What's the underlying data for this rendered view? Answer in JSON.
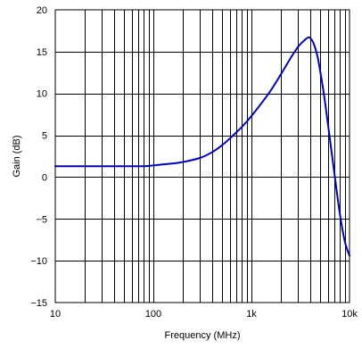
{
  "chart_data": {
    "type": "line",
    "title": "",
    "xlabel": "Frequency (MHz)",
    "ylabel": "Gain (dB)",
    "x_scale": "log",
    "xlim": [
      10,
      10000
    ],
    "ylim": [
      -15,
      20
    ],
    "x_ticks": [
      10,
      100,
      1000,
      10000
    ],
    "x_tick_labels": [
      "10",
      "100",
      "1k",
      "10k"
    ],
    "y_ticks": [
      -15,
      -10,
      -5,
      0,
      5,
      10,
      15,
      20
    ],
    "y_tick_labels": [
      "−15",
      "−10",
      "−5",
      "0",
      "5",
      "10",
      "15",
      "20"
    ],
    "grid": true,
    "line_color": "#0000cc",
    "series": [
      {
        "x": [
          10,
          50,
          80,
          100,
          150,
          200,
          300,
          400,
          500,
          600,
          800,
          1000,
          1500,
          2000,
          2500,
          3000,
          3500,
          3800,
          4000,
          4300,
          4700,
          5000,
          5500,
          6000,
          7000,
          8000,
          9000,
          10000
        ],
        "y": [
          1.3,
          1.3,
          1.3,
          1.4,
          1.6,
          1.8,
          2.3,
          3.0,
          3.8,
          4.6,
          6.0,
          7.3,
          10.0,
          12.3,
          14.2,
          15.6,
          16.4,
          16.7,
          16.6,
          16.0,
          14.5,
          12.8,
          9.8,
          6.5,
          0.5,
          -4.5,
          -7.8,
          -9.4
        ]
      }
    ]
  }
}
